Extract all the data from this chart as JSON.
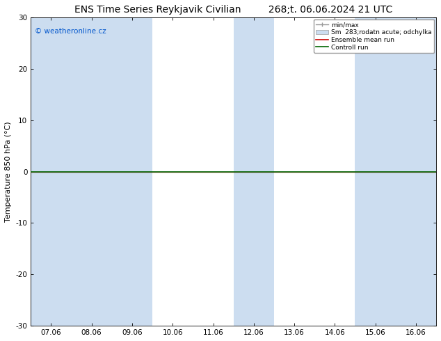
{
  "title_left": "ENS Time Series Reykjavik Civilian",
  "title_right": "268;t. 06.06.2024 21 UTC",
  "ylabel": "Temperature 850 hPa (°C)",
  "xlabel": "",
  "xlim_labels": [
    "07.06",
    "08.06",
    "09.06",
    "10.06",
    "11.06",
    "12.06",
    "13.06",
    "14.06",
    "15.06",
    "16.06"
  ],
  "ylim": [
    -30,
    30
  ],
  "yticks": [
    -30,
    -20,
    -10,
    0,
    10,
    20,
    30
  ],
  "background_color": "#ffffff",
  "plot_bg_color": "#ffffff",
  "watermark": "© weatheronline.cz",
  "watermark_color": "#0055cc",
  "shaded_bands_color": "#ccddf0",
  "shaded_x_indices": [
    0,
    1,
    2,
    5,
    8,
    9
  ],
  "zero_line_color": "#000000",
  "control_run_value": 0.0,
  "ensemble_mean_value": 0.0,
  "legend": {
    "min_max_label": "min/max",
    "sm_label": "Sm  283;rodatn acute; odchylka",
    "ensemble_label": "Ensemble mean run",
    "control_label": "Controll run",
    "min_max_color": "#999999",
    "sm_color": "#ccddf0",
    "ensemble_color": "#cc0000",
    "control_color": "#006600"
  },
  "title_fontsize": 10,
  "axis_fontsize": 8,
  "tick_fontsize": 7.5
}
